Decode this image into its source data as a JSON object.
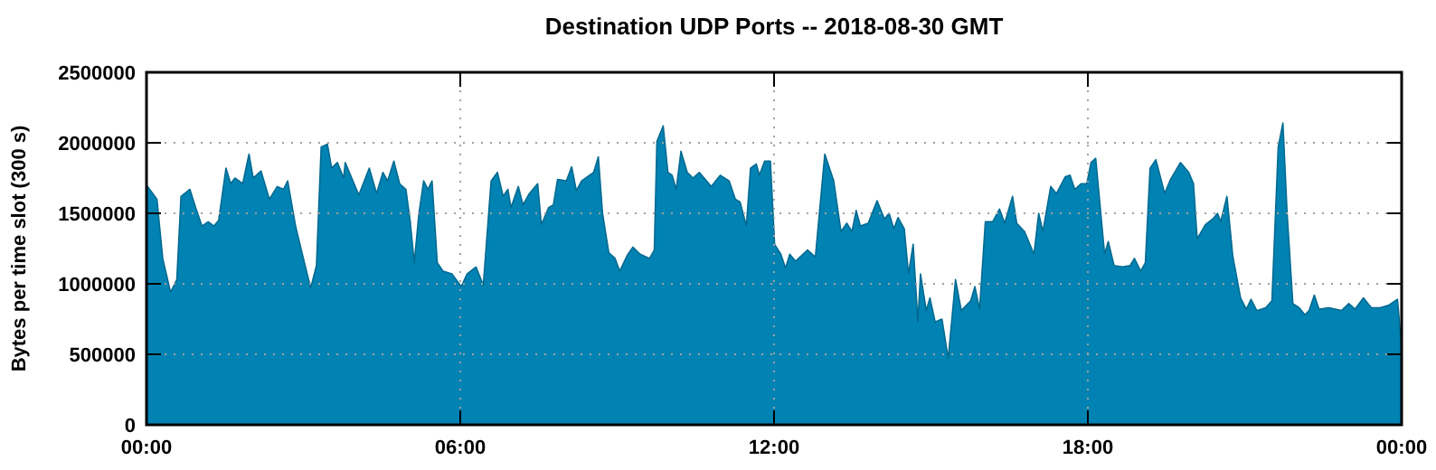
{
  "chart_data": {
    "type": "area",
    "title": "Destination UDP Ports -- 2018-08-30 GMT",
    "ylabel": "Bytes per time slot (300 s)",
    "xlim": [
      0,
      24
    ],
    "xticks": [
      {
        "value": 0,
        "label": "00:00"
      },
      {
        "value": 6,
        "label": "06:00"
      },
      {
        "value": 12,
        "label": "12:00"
      },
      {
        "value": 18,
        "label": "18:00"
      },
      {
        "value": 24,
        "label": "00:00"
      }
    ],
    "ylim": [
      0,
      2500000
    ],
    "yticks": [
      0,
      500000,
      1000000,
      1500000,
      2000000,
      2500000
    ],
    "grid": true,
    "series": [
      {
        "color": "#0083b3",
        "x": [
          0,
          0.2,
          0.31,
          0.46,
          0.58,
          0.66,
          0.83,
          0.94,
          1.06,
          1.18,
          1.29,
          1.38,
          1.52,
          1.61,
          1.69,
          1.84,
          1.96,
          2.04,
          2.19,
          2.35,
          2.5,
          2.62,
          2.7,
          2.85,
          3.02,
          3.14,
          3.25,
          3.34,
          3.46,
          3.54,
          3.65,
          3.77,
          3.8,
          4.06,
          4.26,
          4.4,
          4.52,
          4.61,
          4.73,
          4.84,
          4.96,
          5.04,
          5.12,
          5.21,
          5.3,
          5.38,
          5.46,
          5.56,
          5.67,
          5.84,
          6.02,
          6.13,
          6.3,
          6.44,
          6.59,
          6.71,
          6.82,
          6.91,
          6.97,
          7.11,
          7.2,
          7.32,
          7.48,
          7.55,
          7.69,
          7.78,
          7.86,
          8.03,
          8.13,
          8.22,
          8.32,
          8.55,
          8.64,
          8.72,
          8.84,
          8.96,
          9.05,
          9.19,
          9.3,
          9.44,
          9.62,
          9.71,
          9.76,
          9.88,
          9.97,
          10.05,
          10.13,
          10.22,
          10.34,
          10.45,
          10.57,
          10.8,
          10.97,
          11.14,
          11.26,
          11.35,
          11.47,
          11.55,
          11.66,
          11.72,
          11.82,
          11.93,
          12.01,
          12.13,
          12.22,
          12.3,
          12.41,
          12.64,
          12.79,
          12.97,
          13.14,
          13.28,
          13.39,
          13.49,
          13.57,
          13.65,
          13.8,
          13.97,
          14.11,
          14.2,
          14.29,
          14.37,
          14.49,
          14.57,
          14.66,
          14.75,
          14.8,
          14.91,
          14.98,
          15.08,
          15.21,
          15.33,
          15.47,
          15.58,
          15.76,
          15.84,
          15.93,
          16.04,
          16.18,
          16.31,
          16.41,
          16.56,
          16.64,
          16.79,
          16.97,
          17.06,
          17.14,
          17.29,
          17.4,
          17.57,
          17.66,
          17.75,
          17.87,
          17.98,
          18.06,
          18.15,
          18.32,
          18.39,
          18.5,
          18.66,
          18.81,
          18.89,
          19.01,
          19.1,
          19.19,
          19.3,
          19.47,
          19.58,
          19.77,
          19.93,
          20.02,
          20.09,
          20.25,
          20.39,
          20.48,
          20.54,
          20.66,
          20.77,
          20.92,
          21.03,
          21.12,
          21.23,
          21.4,
          21.52,
          21.64,
          21.73,
          21.81,
          21.92,
          22.04,
          22.15,
          22.23,
          22.33,
          22.42,
          22.61,
          22.85,
          22.99,
          23.11,
          23.27,
          23.42,
          23.59,
          23.76,
          23.92,
          24
        ],
        "values": [
          1700000,
          1600000,
          1180000,
          940000,
          1030000,
          1620000,
          1670000,
          1540000,
          1410000,
          1440000,
          1410000,
          1450000,
          1820000,
          1710000,
          1750000,
          1710000,
          1920000,
          1750000,
          1800000,
          1600000,
          1690000,
          1670000,
          1730000,
          1410000,
          1150000,
          970000,
          1130000,
          1970000,
          1990000,
          1820000,
          1860000,
          1750000,
          1860000,
          1630000,
          1820000,
          1640000,
          1790000,
          1730000,
          1870000,
          1710000,
          1670000,
          1450000,
          1150000,
          1500000,
          1730000,
          1670000,
          1730000,
          1150000,
          1090000,
          1070000,
          980000,
          1070000,
          1120000,
          990000,
          1730000,
          1790000,
          1620000,
          1670000,
          1540000,
          1690000,
          1560000,
          1640000,
          1710000,
          1420000,
          1540000,
          1560000,
          1740000,
          1730000,
          1830000,
          1660000,
          1730000,
          1790000,
          1900000,
          1500000,
          1220000,
          1180000,
          1090000,
          1200000,
          1260000,
          1210000,
          1180000,
          1240000,
          2010000,
          2120000,
          1790000,
          1770000,
          1670000,
          1940000,
          1790000,
          1750000,
          1790000,
          1690000,
          1770000,
          1730000,
          1600000,
          1580000,
          1410000,
          1820000,
          1850000,
          1770000,
          1870000,
          1870000,
          1280000,
          1210000,
          1110000,
          1210000,
          1160000,
          1240000,
          1190000,
          1920000,
          1730000,
          1370000,
          1430000,
          1370000,
          1520000,
          1410000,
          1430000,
          1590000,
          1460000,
          1500000,
          1390000,
          1470000,
          1390000,
          1070000,
          1280000,
          730000,
          1070000,
          810000,
          900000,
          730000,
          750000,
          470000,
          1030000,
          810000,
          880000,
          980000,
          820000,
          1440000,
          1440000,
          1530000,
          1430000,
          1620000,
          1430000,
          1370000,
          1210000,
          1500000,
          1370000,
          1690000,
          1640000,
          1760000,
          1770000,
          1670000,
          1710000,
          1710000,
          1860000,
          1890000,
          1210000,
          1300000,
          1130000,
          1120000,
          1130000,
          1180000,
          1090000,
          1150000,
          1820000,
          1880000,
          1640000,
          1740000,
          1860000,
          1790000,
          1710000,
          1320000,
          1420000,
          1460000,
          1500000,
          1440000,
          1620000,
          1200000,
          900000,
          820000,
          890000,
          810000,
          830000,
          880000,
          1970000,
          2140000,
          1500000,
          860000,
          830000,
          780000,
          810000,
          920000,
          820000,
          830000,
          810000,
          860000,
          820000,
          900000,
          830000,
          830000,
          850000,
          890000,
          550000
        ]
      }
    ]
  }
}
